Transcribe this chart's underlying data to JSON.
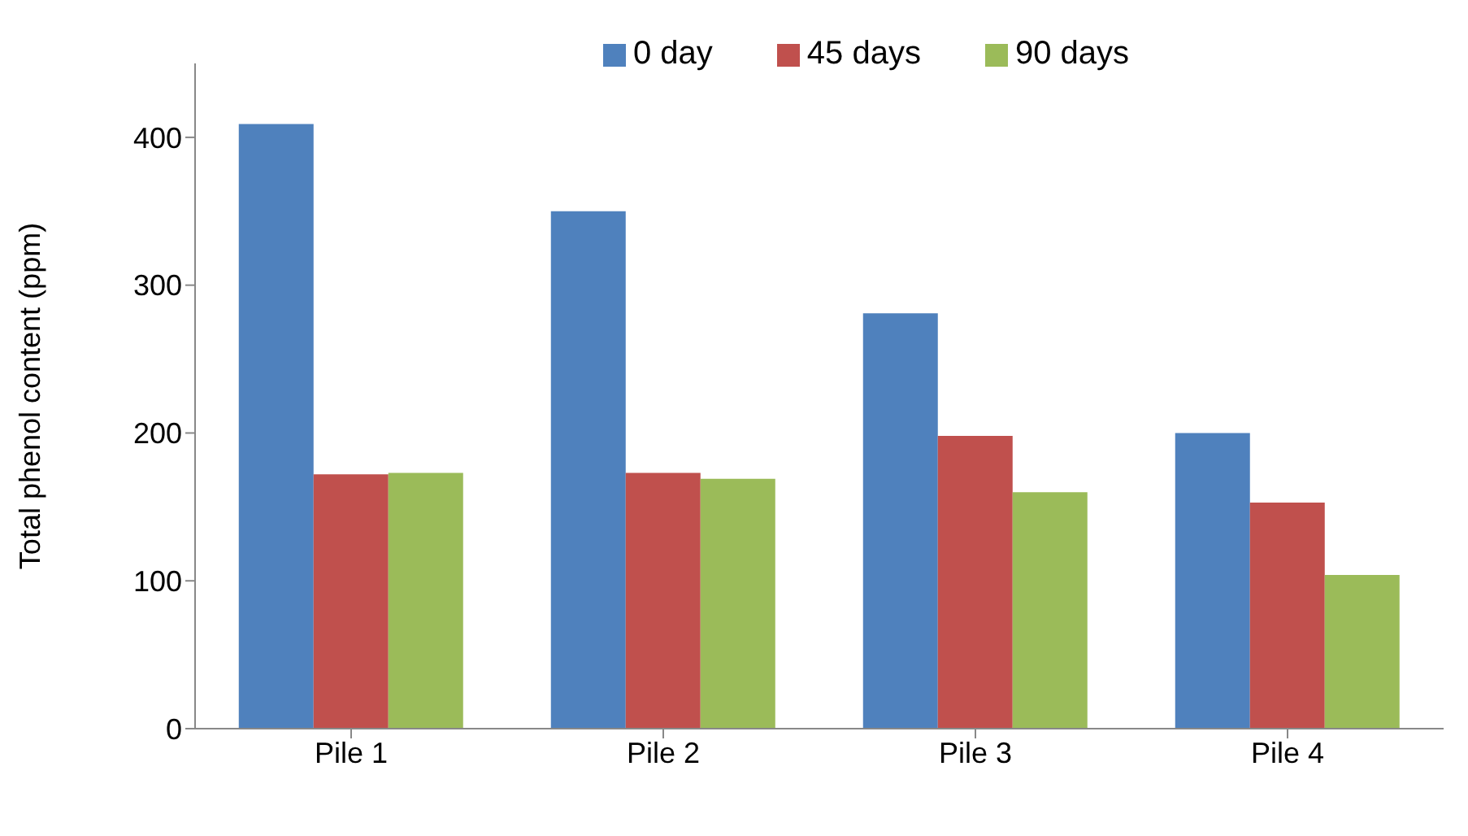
{
  "chart_data": {
    "type": "bar",
    "ylabel": "Total phenol content (ppm)",
    "categories": [
      "Pile 1",
      "Pile 2",
      "Pile 3",
      "Pile 4"
    ],
    "series": [
      {
        "name": "0 day",
        "color": "#4f81bd",
        "values": [
          409,
          350,
          281,
          200
        ]
      },
      {
        "name": "45 days",
        "color": "#c0504d",
        "values": [
          172,
          173,
          198,
          153
        ]
      },
      {
        "name": "90 days",
        "color": "#9bbb59",
        "values": [
          173,
          169,
          160,
          104
        ]
      }
    ],
    "ylim": [
      0,
      450
    ],
    "yticks": [
      0,
      100,
      200,
      300,
      400
    ],
    "grid": false,
    "legend": "top"
  }
}
